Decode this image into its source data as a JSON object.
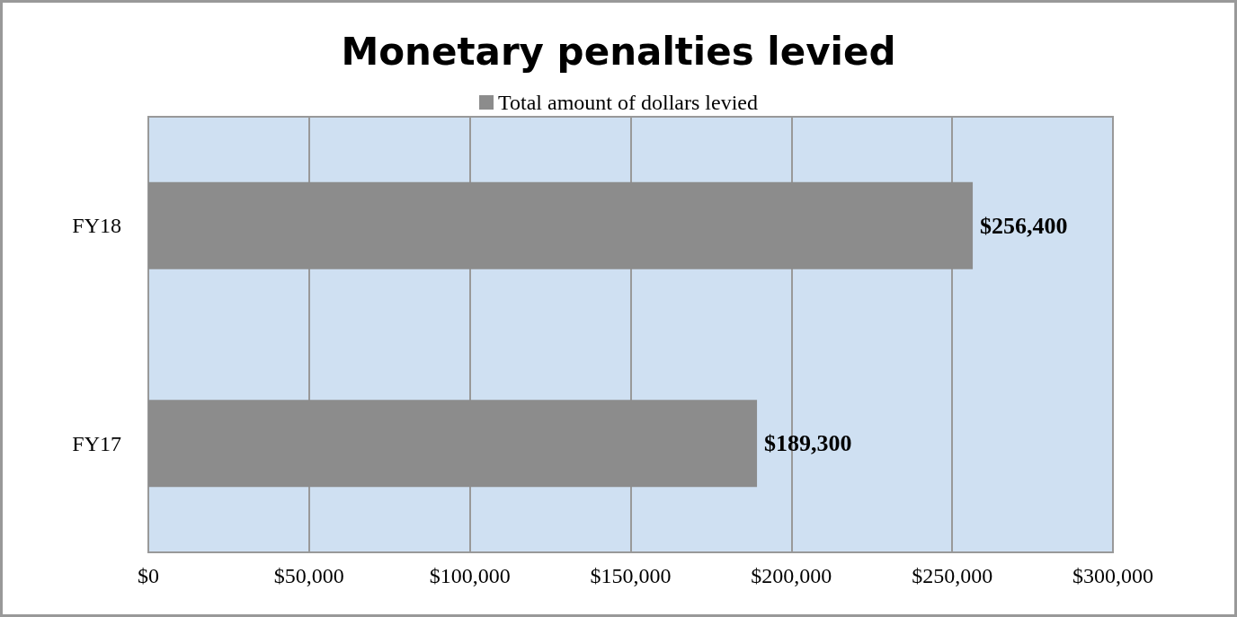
{
  "chart_data": {
    "type": "bar",
    "orientation": "horizontal",
    "title": "Monetary penalties levied",
    "categories": [
      "FY18",
      "FY17"
    ],
    "series": [
      {
        "name": "Total amount of dollars levied",
        "color": "#8c8c8c",
        "values": [
          256400,
          189300
        ],
        "value_labels": [
          "$256,400",
          "$189,300"
        ]
      }
    ],
    "xlim": [
      0,
      300000
    ],
    "xticks": [
      {
        "value": 0,
        "label": "$0"
      },
      {
        "value": 50000,
        "label": "$50,000"
      },
      {
        "value": 100000,
        "label": "$100,000"
      },
      {
        "value": 150000,
        "label": "$150,000"
      },
      {
        "value": 200000,
        "label": "$200,000"
      },
      {
        "value": 250000,
        "label": "$250,000"
      },
      {
        "value": 300000,
        "label": "$300,000"
      }
    ],
    "grid": "x",
    "legend": "top"
  }
}
